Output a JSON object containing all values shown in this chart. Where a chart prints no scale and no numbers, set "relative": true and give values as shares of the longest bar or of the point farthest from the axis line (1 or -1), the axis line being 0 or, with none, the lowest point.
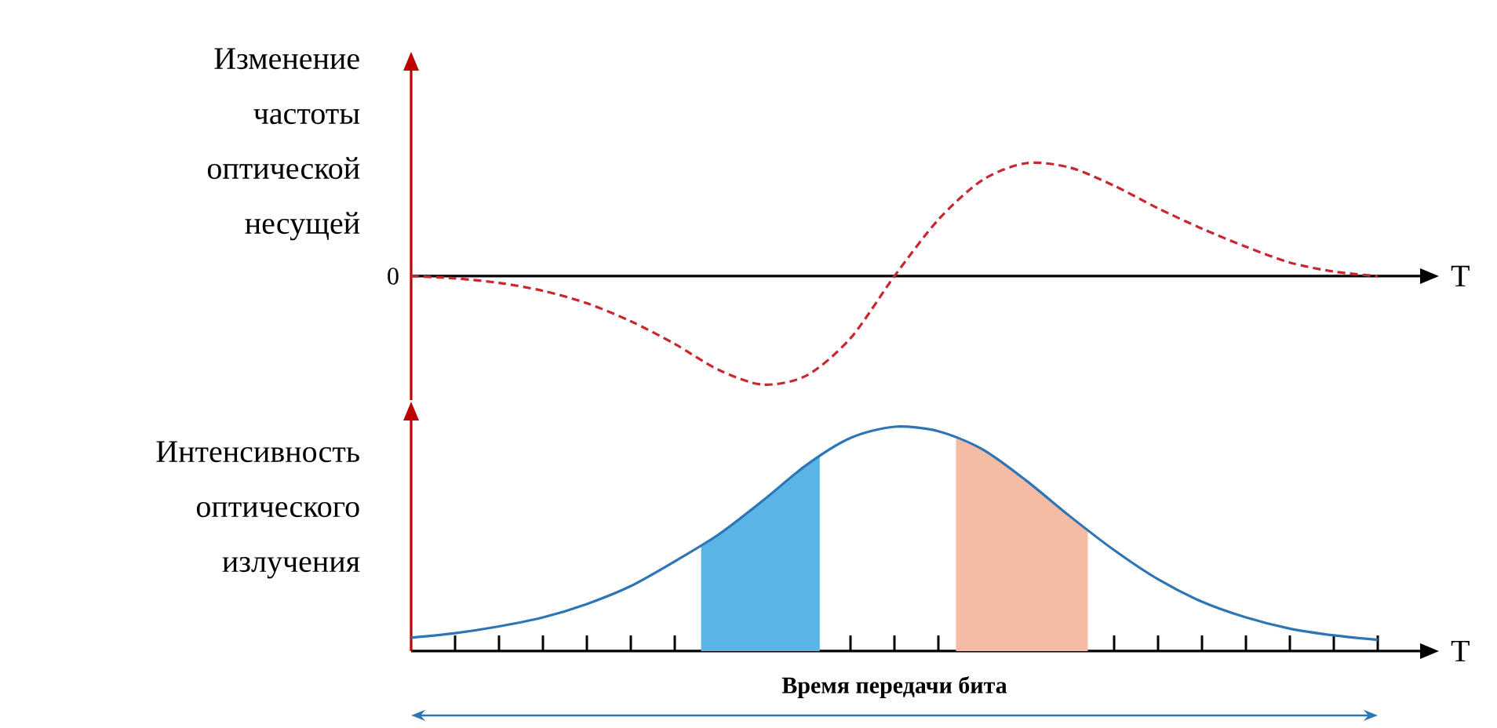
{
  "chart_data": [
    {
      "type": "line",
      "ylabel": "Изменение частоты оптической несущей",
      "xlabel": "T",
      "relative": true,
      "line_style": "dashed",
      "categories": [
        null,
        null,
        null,
        null,
        null,
        null,
        null,
        null,
        null,
        null,
        null,
        null,
        null,
        null,
        null,
        null,
        null,
        null,
        null,
        null,
        null,
        null,
        null
      ],
      "series": [
        {
          "color": "#c8282d",
          "values": [
            0,
            -0.02,
            -0.06,
            -0.13,
            -0.24,
            -0.4,
            -0.6,
            -0.83,
            -0.96,
            -0.88,
            -0.55,
            0,
            0.5,
            0.85,
            1.0,
            0.96,
            0.8,
            0.6,
            0.42,
            0.26,
            0.12,
            0.04,
            0
          ]
        }
      ],
      "annotations": [
        "0"
      ]
    },
    {
      "type": "line",
      "ylabel": "Интенсивность оптического излучения",
      "xlabel": "T",
      "relative": true,
      "line_style": "solid",
      "categories": [
        null,
        null,
        null,
        null,
        null,
        null,
        null,
        null,
        null,
        null,
        null,
        null,
        null,
        null,
        null,
        null,
        null,
        null,
        null,
        null,
        null,
        null,
        null
      ],
      "series": [
        {
          "color": "#2e75b6",
          "values": [
            0.06,
            0.08,
            0.11,
            0.15,
            0.21,
            0.29,
            0.4,
            0.52,
            0.67,
            0.83,
            0.95,
            1.0,
            0.98,
            0.9,
            0.76,
            0.6,
            0.45,
            0.32,
            0.22,
            0.15,
            0.1,
            0.07,
            0.05
          ]
        }
      ],
      "annotations": [
        "Время передачи бита"
      ]
    }
  ]
}
